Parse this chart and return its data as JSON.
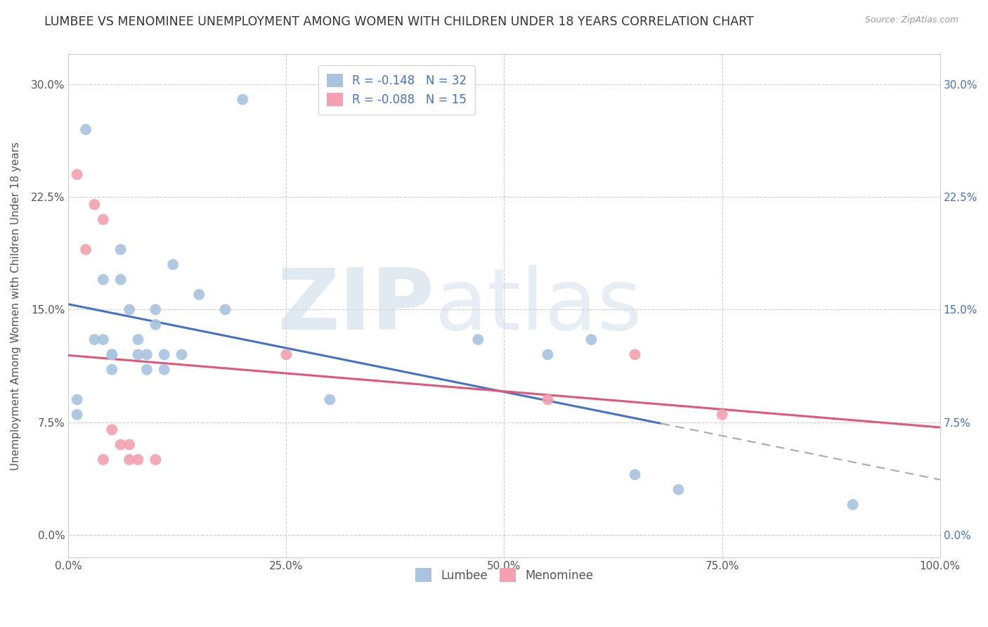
{
  "title": "LUMBEE VS MENOMINEE UNEMPLOYMENT AMONG WOMEN WITH CHILDREN UNDER 18 YEARS CORRELATION CHART",
  "source": "Source: ZipAtlas.com",
  "ylabel": "Unemployment Among Women with Children Under 18 years",
  "xlabel": "",
  "xlim": [
    0,
    100
  ],
  "ylim": [
    -1.5,
    32
  ],
  "yticks": [
    0,
    7.5,
    15.0,
    22.5,
    30.0
  ],
  "xticks": [
    0,
    25,
    50,
    75,
    100
  ],
  "xtick_labels": [
    "0.0%",
    "25.0%",
    "50.0%",
    "75.0%",
    "100.0%"
  ],
  "ytick_labels": [
    "0.0%",
    "7.5%",
    "15.0%",
    "22.5%",
    "30.0%"
  ],
  "lumbee_color": "#a8c4e0",
  "menominee_color": "#f4a0b0",
  "lumbee_line_color": "#4472c4",
  "menominee_line_color": "#e05878",
  "lumbee_R": -0.148,
  "lumbee_N": 32,
  "menominee_R": -0.088,
  "menominee_N": 15,
  "watermark_ZIP": "ZIP",
  "watermark_atlas": "atlas",
  "lumbee_x": [
    1,
    1,
    2,
    3,
    4,
    4,
    5,
    5,
    5,
    6,
    6,
    7,
    8,
    8,
    9,
    9,
    10,
    10,
    11,
    11,
    12,
    13,
    15,
    18,
    20,
    30,
    47,
    55,
    60,
    65,
    70,
    90
  ],
  "lumbee_y": [
    8,
    9,
    27,
    13,
    13,
    17,
    11,
    12,
    12,
    17,
    19,
    15,
    13,
    12,
    12,
    11,
    14,
    15,
    11,
    12,
    18,
    12,
    16,
    15,
    29,
    9,
    13,
    12,
    13,
    4,
    3,
    2
  ],
  "menominee_x": [
    1,
    2,
    3,
    4,
    4,
    5,
    6,
    7,
    7,
    8,
    10,
    25,
    55,
    65,
    75
  ],
  "menominee_y": [
    24,
    19,
    22,
    21,
    5,
    7,
    6,
    5,
    6,
    5,
    5,
    12,
    9,
    12,
    8
  ],
  "background_color": "#ffffff",
  "grid_color": "#cccccc",
  "title_fontsize": 12.5,
  "label_fontsize": 11,
  "tick_fontsize": 11,
  "legend_fontsize": 12,
  "left_tick_color": "#555555",
  "right_ytick_color": "#4472c4",
  "lumbee_line_xmax": 68,
  "menominee_line_xmax": 100
}
